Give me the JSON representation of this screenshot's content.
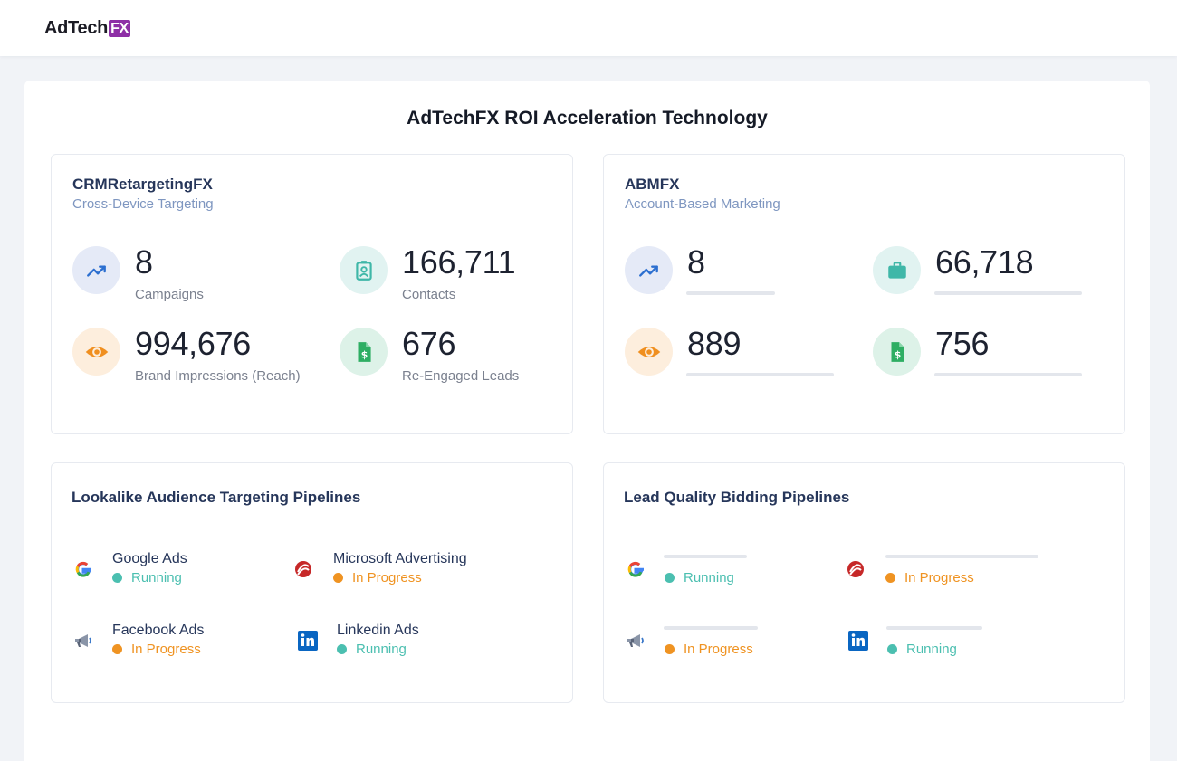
{
  "brand": {
    "name": "AdTech",
    "suffix": "FX",
    "accent": "#8e2fa6"
  },
  "page": {
    "title": "AdTechFX ROI Acceleration Technology"
  },
  "crm": {
    "title": "CRMRetargetingFX",
    "subtitle": "Cross-Device Targeting",
    "stats": [
      {
        "value": "8",
        "label": "Campaigns",
        "icon": "trending-up-icon"
      },
      {
        "value": "166,711",
        "label": "Contacts",
        "icon": "contact-card-icon"
      },
      {
        "value": "994,676",
        "label": "Brand Impressions (Reach)",
        "icon": "eye-icon"
      },
      {
        "value": "676",
        "label": "Re-Engaged Leads",
        "icon": "dollar-document-icon"
      }
    ]
  },
  "abm": {
    "title": "ABMFX",
    "subtitle": "Account-Based Marketing",
    "stats": [
      {
        "value": "8",
        "icon": "trending-up-icon"
      },
      {
        "value": "66,718",
        "icon": "briefcase-icon"
      },
      {
        "value": "889",
        "icon": "eye-icon"
      },
      {
        "value": "756",
        "icon": "dollar-document-icon"
      }
    ]
  },
  "lookalike": {
    "title": "Lookalike Audience Targeting Pipelines",
    "items": [
      {
        "name": "Google Ads",
        "status": "Running",
        "icon": "google-icon"
      },
      {
        "name": "Microsoft Advertising",
        "status": "In Progress",
        "icon": "microsoft-advertising-icon"
      },
      {
        "name": "Facebook Ads",
        "status": "In Progress",
        "icon": "megaphone-icon"
      },
      {
        "name": "Linkedin Ads",
        "status": "Running",
        "icon": "linkedin-icon"
      }
    ]
  },
  "leadquality": {
    "title": "Lead Quality Bidding Pipelines",
    "items": [
      {
        "status": "Running",
        "icon": "google-icon"
      },
      {
        "status": "In Progress",
        "icon": "microsoft-advertising-icon"
      },
      {
        "status": "In Progress",
        "icon": "megaphone-icon"
      },
      {
        "status": "Running",
        "icon": "linkedin-icon"
      }
    ]
  },
  "colors": {
    "running": "#4bbfb0",
    "in_progress": "#ef9322",
    "title": "#26365a",
    "subtitle": "#7e96c0"
  }
}
